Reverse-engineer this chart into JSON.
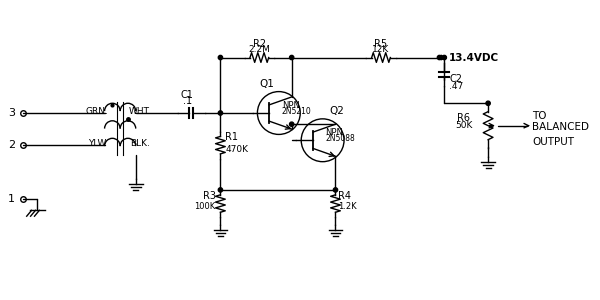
{
  "bg_color": "#ffffff",
  "line_color": "#000000",
  "components": {
    "R2": "2.2M",
    "R5": "12K",
    "R1": "470K",
    "R3": "100K",
    "R4": "1.2K",
    "R6": "50K",
    "C1": ".1",
    "C2": ".47",
    "Q1_type": "NPN",
    "Q1_part": "2N5210",
    "Q2_type": "NPN",
    "Q2_part": "2N5088",
    "vdc": "13.4VDC",
    "out1": "TO",
    "out2": "BALANCED",
    "out3": "OUTPUT",
    "grn": "GRN.",
    "ylw": "YLW",
    "wht": "WHT.",
    "blk": "BLK."
  },
  "pin_labels": [
    "3",
    "2",
    "1"
  ]
}
